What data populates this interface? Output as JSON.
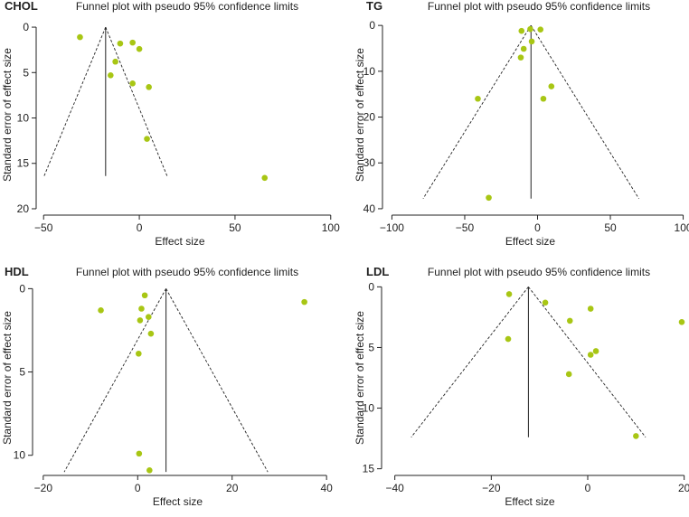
{
  "chart_data": [
    {
      "type": "scatter",
      "panel_label": "CHOL",
      "title": "Funnel plot with pseudo 95% confidence limits",
      "xlabel": "Effect size",
      "ylabel": "Standard error of effect size",
      "xlim": [
        -52,
        102
      ],
      "ylim": [
        20.5,
        -1.2
      ],
      "xticks": [
        -50,
        0,
        50,
        100
      ],
      "yticks": [
        0,
        5,
        10,
        15,
        20
      ],
      "pooled_effect": -17.6,
      "funnel_apex_se": 0,
      "funnel_base_se": 16.4,
      "points": [
        {
          "x": -31,
          "y": 1.1
        },
        {
          "x": -10,
          "y": 1.8
        },
        {
          "x": -3.5,
          "y": 1.7
        },
        {
          "x": 0,
          "y": 2.4
        },
        {
          "x": -12.5,
          "y": 3.8
        },
        {
          "x": -15,
          "y": 5.3
        },
        {
          "x": -3.5,
          "y": 6.2
        },
        {
          "x": 5,
          "y": 6.6
        },
        {
          "x": 4,
          "y": 12.3
        },
        {
          "x": 65.5,
          "y": 16.6
        }
      ]
    },
    {
      "type": "scatter",
      "panel_label": "TG",
      "title": "Funnel plot with pseudo 95% confidence limits",
      "xlabel": "Effect size",
      "ylabel": "Standard error of effect size",
      "xlim": [
        -104,
        104
      ],
      "ylim": [
        41,
        -2
      ],
      "xticks": [
        -100,
        -50,
        0,
        50,
        100
      ],
      "yticks": [
        0,
        10,
        20,
        30,
        40
      ],
      "pooled_effect": -4.5,
      "funnel_apex_se": 0,
      "funnel_base_se": 37.8,
      "points": [
        {
          "x": -11,
          "y": 1.2
        },
        {
          "x": -5,
          "y": 0.8
        },
        {
          "x": 2,
          "y": 0.9
        },
        {
          "x": -4,
          "y": 3.5
        },
        {
          "x": -9.5,
          "y": 5.1
        },
        {
          "x": -11.5,
          "y": 7
        },
        {
          "x": 9.5,
          "y": 13.3
        },
        {
          "x": 4,
          "y": 16
        },
        {
          "x": -41,
          "y": 16
        },
        {
          "x": -33.5,
          "y": 37.6
        }
      ]
    },
    {
      "type": "scatter",
      "panel_label": "HDL",
      "title": "Funnel plot with pseudo 95% confidence limits",
      "xlabel": "Effect size",
      "ylabel": "Standard error of effect size",
      "xlim": [
        -21.5,
        41.5
      ],
      "ylim": [
        11.1,
        -0.4
      ],
      "xticks": [
        -20,
        0,
        20,
        40
      ],
      "yticks": [
        0,
        5,
        10
      ],
      "pooled_effect": 6,
      "funnel_apex_se": 0,
      "funnel_base_se": 11,
      "points": [
        {
          "x": 1.5,
          "y": 0.4
        },
        {
          "x": 35.3,
          "y": 0.8
        },
        {
          "x": -7.8,
          "y": 1.3
        },
        {
          "x": 0.8,
          "y": 1.2
        },
        {
          "x": 2.3,
          "y": 1.7
        },
        {
          "x": 0.5,
          "y": 1.9
        },
        {
          "x": 2.8,
          "y": 2.7
        },
        {
          "x": 0.2,
          "y": 3.9
        },
        {
          "x": 0.3,
          "y": 9.9
        },
        {
          "x": 2.5,
          "y": 10.9
        }
      ]
    },
    {
      "type": "scatter",
      "panel_label": "LDL",
      "title": "Funnel plot with pseudo 95% confidence limits",
      "xlabel": "Effect size",
      "ylabel": "Standard error of effect size",
      "xlim": [
        -42,
        21
      ],
      "ylim": [
        15.4,
        -0.4
      ],
      "xticks": [
        -40,
        -20,
        0,
        20
      ],
      "yticks": [
        0,
        5,
        10,
        15
      ],
      "pooled_effect": -12.3,
      "funnel_apex_se": 0,
      "funnel_base_se": 12.4,
      "points": [
        {
          "x": -16.3,
          "y": 0.6
        },
        {
          "x": -8.8,
          "y": 1.3
        },
        {
          "x": 0.6,
          "y": 1.8
        },
        {
          "x": -3.7,
          "y": 2.8
        },
        {
          "x": 19.5,
          "y": 2.9
        },
        {
          "x": -16.5,
          "y": 4.3
        },
        {
          "x": 1.7,
          "y": 5.3
        },
        {
          "x": 0.6,
          "y": 5.6
        },
        {
          "x": -3.9,
          "y": 7.2
        },
        {
          "x": 10,
          "y": 12.3
        }
      ]
    }
  ],
  "colors": {
    "point": "#a8c614",
    "ink": "#222222"
  }
}
